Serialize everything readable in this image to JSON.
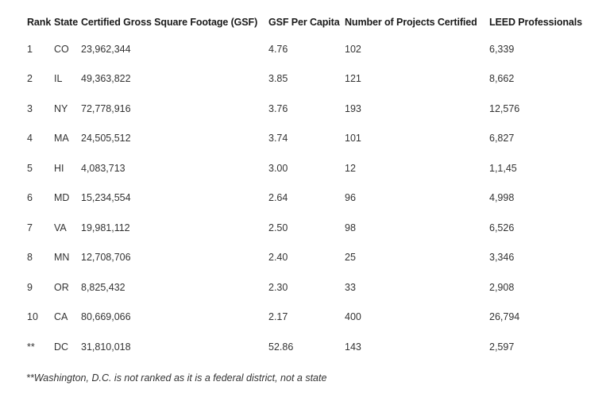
{
  "table": {
    "headers": [
      "Rank",
      "State",
      "Certified Gross Square Footage (GSF)",
      "GSF Per Capita",
      "Number of Projects Certified",
      "LEED Professionals"
    ],
    "rows": [
      [
        "1",
        "CO",
        "23,962,344",
        "4.76",
        "102",
        "6,339"
      ],
      [
        "2",
        "IL",
        "49,363,822",
        "3.85",
        "121",
        "8,662"
      ],
      [
        "3",
        "NY",
        "72,778,916",
        "3.76",
        "193",
        "12,576"
      ],
      [
        "4",
        "MA",
        "24,505,512",
        "3.74",
        "101",
        "6,827"
      ],
      [
        "5",
        "HI",
        "4,083,713",
        "3.00",
        "12",
        "1,1,45"
      ],
      [
        "6",
        "MD",
        "15,234,554",
        "2.64",
        "96",
        "4,998"
      ],
      [
        "7",
        "VA",
        "19,981,112",
        "2.50",
        "98",
        "6,526"
      ],
      [
        "8",
        "MN",
        "12,708,706",
        "2.40",
        "25",
        "3,346"
      ],
      [
        "9",
        "OR",
        "8,825,432",
        "2.30",
        "33",
        "2,908"
      ],
      [
        "10",
        "CA",
        "80,669,066",
        "2.17",
        "400",
        "26,794"
      ],
      [
        "**",
        "DC",
        "31,810,018",
        "52.86",
        "143",
        "2,597"
      ]
    ]
  },
  "footnote": "**Washington, D.C. is not ranked as it is a federal district, not a state"
}
